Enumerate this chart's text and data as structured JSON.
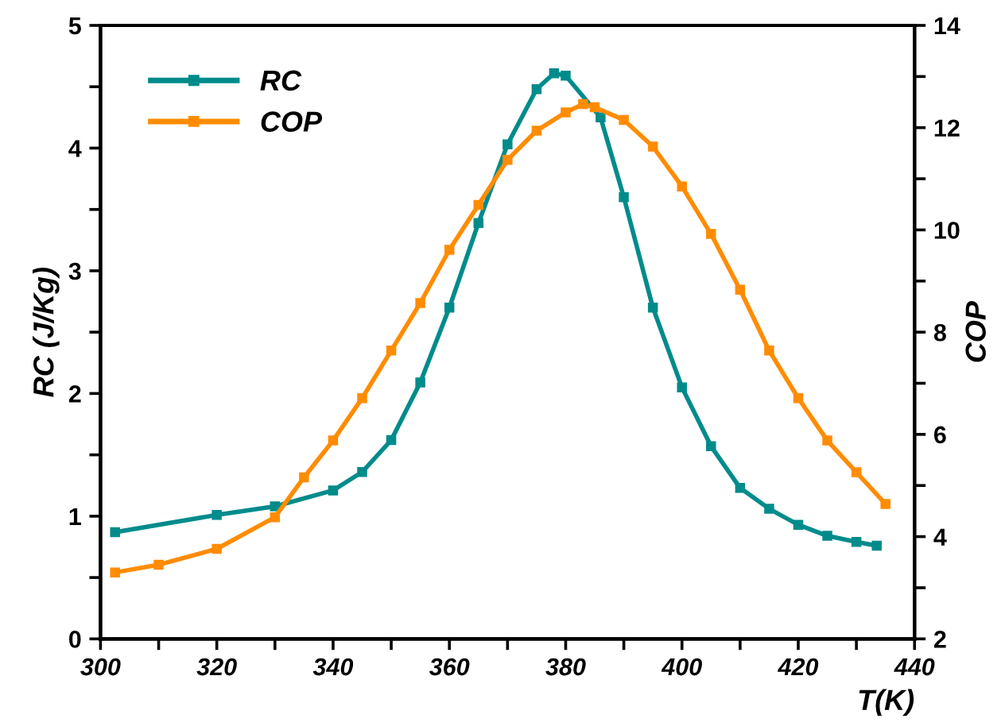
{
  "chart_data": {
    "type": "line",
    "xlabel": "T(K)",
    "ylabel": "RC (J/Kg)",
    "y2label": "COP",
    "marker": "square",
    "grid": false,
    "legend": "top left",
    "xlim": [
      300,
      440
    ],
    "xticks": [
      300,
      {
        "value": 310,
        "label": null
      },
      320,
      {
        "value": 330,
        "label": null
      },
      340,
      {
        "value": 350,
        "label": null
      },
      360,
      {
        "value": 370,
        "label": null
      },
      380,
      {
        "value": 390,
        "label": null
      },
      400,
      {
        "value": 410,
        "label": null
      },
      420,
      {
        "value": 430,
        "label": null
      },
      440
    ],
    "ylim": [
      0,
      5
    ],
    "yticks": [
      0,
      {
        "value": 0.5,
        "label": null
      },
      1,
      {
        "value": 1.5,
        "label": null
      },
      2,
      {
        "value": 2.5,
        "label": null
      },
      3,
      {
        "value": 3.5,
        "label": null
      },
      4,
      {
        "value": 4.5,
        "label": null
      },
      5
    ],
    "y2lim": [
      2,
      14
    ],
    "y2ticks": [
      2,
      {
        "value": 3,
        "label": null
      },
      4,
      {
        "value": 5,
        "label": null
      },
      6,
      {
        "value": 7,
        "label": null
      },
      8,
      {
        "value": 9,
        "label": null
      },
      10,
      {
        "value": 11,
        "label": null
      },
      12,
      {
        "value": 13,
        "label": null
      },
      14
    ],
    "series": [
      {
        "name": "RC",
        "color": "#008b8b",
        "x": [
          302.5,
          320,
          330,
          340,
          345,
          350,
          355,
          360,
          365,
          370,
          375,
          378,
          380,
          386,
          390,
          395,
          400,
          405,
          410,
          415,
          420,
          425,
          430,
          433.5
        ],
        "values": [
          0.87,
          1.01,
          1.08,
          1.21,
          1.36,
          1.62,
          2.09,
          2.7,
          3.39,
          4.03,
          4.48,
          4.61,
          4.59,
          4.25,
          3.6,
          2.7,
          2.05,
          1.57,
          1.23,
          1.06,
          0.93,
          0.84,
          0.79,
          0.76
        ]
      },
      {
        "name": "COP",
        "color": "#ff8c00",
        "axis": "y2",
        "x": [
          302.5,
          310,
          320,
          330,
          335,
          340,
          345,
          350,
          355,
          360,
          365,
          370,
          375,
          380,
          383,
          385,
          390,
          395,
          400,
          405,
          410,
          415,
          420,
          425,
          430,
          435
        ],
        "values": [
          3.3,
          3.45,
          3.76,
          4.38,
          5.16,
          5.88,
          6.71,
          7.64,
          8.57,
          9.61,
          10.49,
          11.37,
          11.94,
          12.3,
          12.46,
          12.4,
          12.15,
          11.63,
          10.85,
          9.92,
          8.83,
          7.64,
          6.71,
          5.88,
          5.26,
          4.64
        ]
      }
    ]
  }
}
